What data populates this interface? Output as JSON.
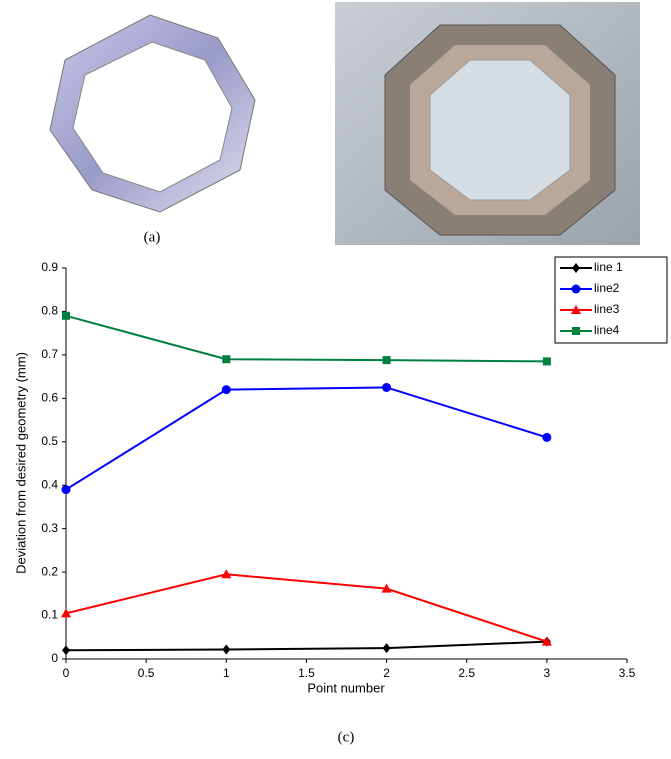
{
  "figure": {
    "label_a": "(a)",
    "label_c": "(c)"
  },
  "chart_data": {
    "type": "line",
    "xlabel": "Point number",
    "ylabel": "Deviation from desired geometry (mm)",
    "xlim": [
      0,
      3.5
    ],
    "xticks": [
      0,
      0.5,
      1,
      1.5,
      2,
      2.5,
      3,
      3.5
    ],
    "ylim": [
      0,
      0.9
    ],
    "yticks": [
      0,
      0.1,
      0.2,
      0.3,
      0.4,
      0.5,
      0.6,
      0.7,
      0.8,
      0.9
    ],
    "grid": false,
    "legend": "upper right",
    "x": [
      0,
      1,
      2,
      3
    ],
    "series": [
      {
        "name": "line 1",
        "color": "#000000",
        "marker": "diamond",
        "values": [
          0.02,
          0.022,
          0.025,
          0.04
        ]
      },
      {
        "name": "line2",
        "color": "#0000ff",
        "marker": "circle",
        "values": [
          0.39,
          0.62,
          0.625,
          0.51
        ]
      },
      {
        "name": "line3",
        "color": "#ff0000",
        "marker": "triangle",
        "values": [
          0.105,
          0.195,
          0.162,
          0.04
        ]
      },
      {
        "name": "line4",
        "color": "#008040",
        "marker": "square",
        "values": [
          0.79,
          0.69,
          0.688,
          0.685
        ]
      }
    ]
  }
}
